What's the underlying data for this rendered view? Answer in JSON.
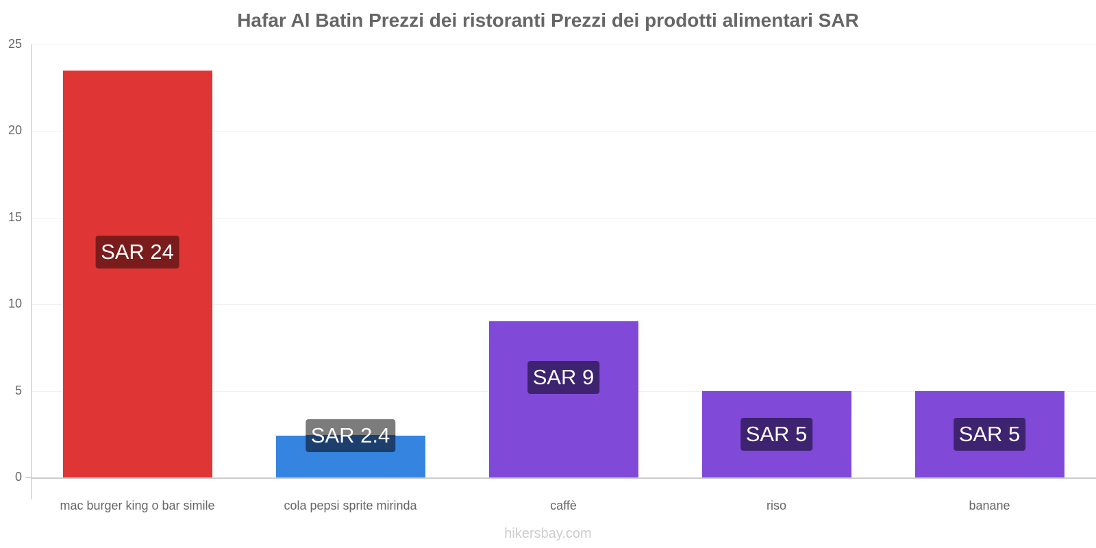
{
  "chart_data": {
    "type": "bar",
    "title": "Hafar Al Batin Prezzi dei ristoranti Prezzi dei prodotti alimentari SAR",
    "xlabel": "",
    "ylabel": "",
    "ylim": [
      0,
      25
    ],
    "yticks": [
      0,
      5,
      10,
      15,
      20,
      25
    ],
    "grid": true,
    "categories": [
      "mac burger king o bar simile",
      "cola pepsi sprite mirinda",
      "caffè",
      "riso",
      "banane"
    ],
    "values": [
      23.5,
      2.4,
      9,
      5,
      5
    ],
    "data_labels": [
      "SAR 24",
      "SAR 2.4",
      "SAR 9",
      "SAR 5",
      "SAR 5"
    ],
    "colors": [
      "#e03535",
      "#3584e0",
      "#8049d8",
      "#8049d8",
      "#8049d8"
    ],
    "label_colors": [
      "#7a1c1c",
      "#1d3f6e",
      "#3e2470",
      "#3e2470",
      "#3e2470"
    ]
  },
  "footer": "hikersbay.com"
}
